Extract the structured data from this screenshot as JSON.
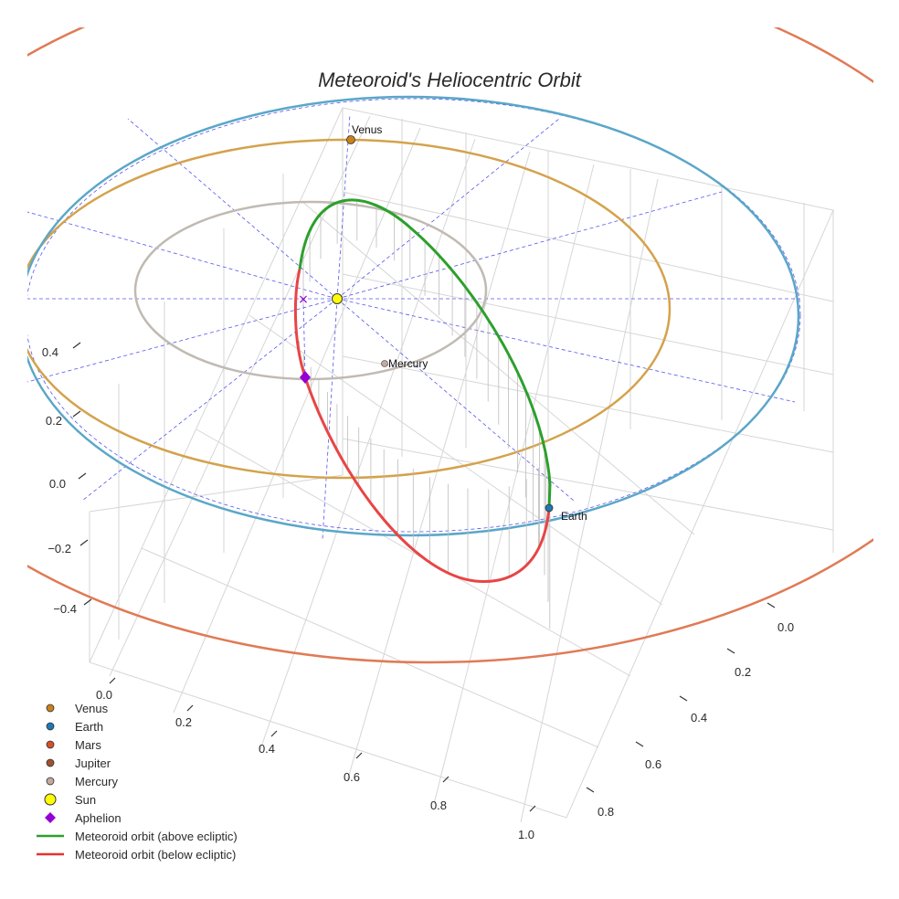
{
  "chart_data": {
    "type": "scatter",
    "title": "Meteoroid's Heliocentric Orbit",
    "axes": {
      "x": {
        "ticks": [
          "0.0",
          "0.2",
          "0.4",
          "0.6",
          "0.8",
          "1.0"
        ]
      },
      "y": {
        "ticks": [
          "0.0",
          "0.2",
          "0.4",
          "0.6",
          "0.8"
        ]
      },
      "z": {
        "ticks": [
          "0.4",
          "0.2",
          "0.0",
          "−0.2",
          "−0.4"
        ]
      }
    },
    "planet_orbits": [
      {
        "name": "Mercury",
        "color": "#c0bab2"
      },
      {
        "name": "Venus",
        "color": "#d4a24c"
      },
      {
        "name": "Earth",
        "color": "#5aa7c8"
      },
      {
        "name": "Mars",
        "color": "#e07a55"
      }
    ],
    "points": [
      {
        "name": "Venus",
        "label": "Venus",
        "color": "#c8811c"
      },
      {
        "name": "Earth",
        "label": "Earth",
        "color": "#1f77b4"
      },
      {
        "name": "Mercury",
        "label": "Mercury",
        "color": "#b8a8a0"
      },
      {
        "name": "Sun",
        "label": "",
        "color": "#ffff00"
      },
      {
        "name": "Aphelion",
        "label": "",
        "color": "#9400d3"
      }
    ],
    "series": [
      {
        "name": "Meteoroid orbit (above ecliptic)",
        "color": "#2ca02c"
      },
      {
        "name": "Meteoroid orbit (below ecliptic)",
        "color": "#e84545"
      }
    ],
    "legend": {
      "position": "bottom-left",
      "items": [
        {
          "label": "Venus",
          "marker": "circle",
          "color": "#c8811c"
        },
        {
          "label": "Earth",
          "marker": "circle",
          "color": "#1f77b4"
        },
        {
          "label": "Mars",
          "marker": "circle",
          "color": "#d6502a"
        },
        {
          "label": "Jupiter",
          "marker": "circle",
          "color": "#a0522d"
        },
        {
          "label": "Mercury",
          "marker": "circle",
          "color": "#c4a8a0"
        },
        {
          "label": "Sun",
          "marker": "circle-large",
          "color": "#ffff00"
        },
        {
          "label": "Aphelion",
          "marker": "diamond",
          "color": "#9400d3"
        },
        {
          "label": "Meteoroid orbit (above ecliptic)",
          "marker": "line",
          "color": "#2ca02c"
        },
        {
          "label": "Meteoroid orbit (below ecliptic)",
          "marker": "line",
          "color": "#e8312f"
        }
      ]
    },
    "grid": true
  }
}
